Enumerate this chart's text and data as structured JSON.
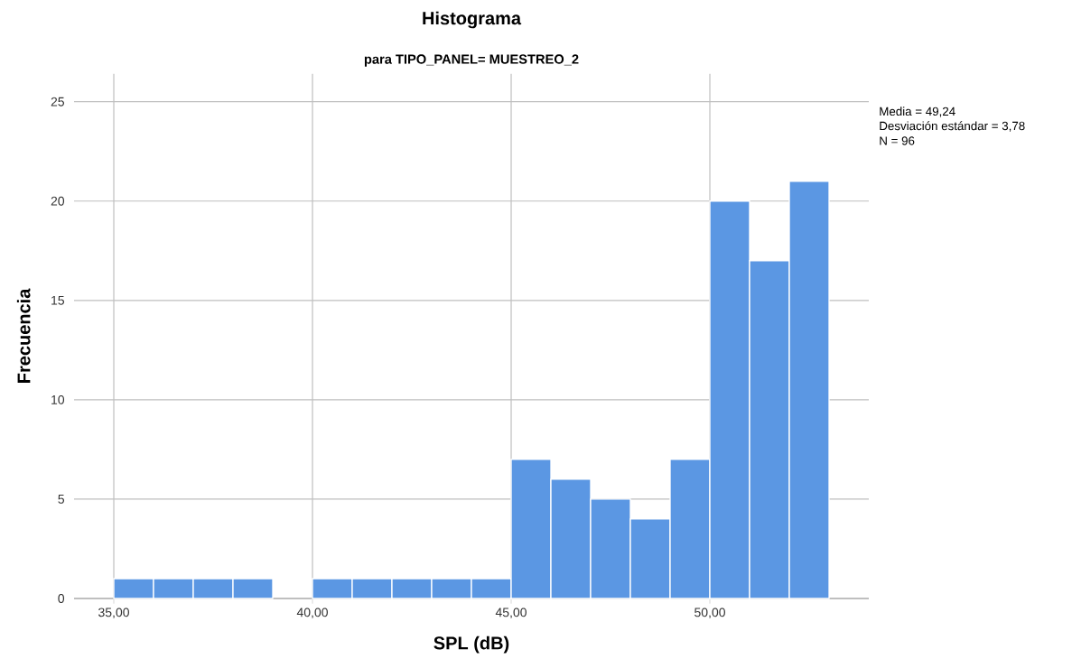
{
  "chart_data": {
    "type": "histogram",
    "title": "Histograma",
    "subtitle": "para TIPO_PANEL= MUESTREO_2",
    "xlabel": "SPL (dB)",
    "ylabel": "Frecuencia",
    "bins": [
      35,
      36,
      37,
      38,
      39,
      40,
      41,
      42,
      43,
      44,
      45,
      46,
      47,
      48,
      49,
      50,
      51,
      52,
      53
    ],
    "values": [
      1,
      1,
      1,
      1,
      0,
      1,
      1,
      1,
      1,
      1,
      7,
      6,
      5,
      4,
      7,
      20,
      17,
      21
    ],
    "color": "#5b97e3",
    "xlim": [
      34,
      54
    ],
    "ylim": [
      0,
      26.4
    ],
    "xticks": [
      {
        "value": 35,
        "label": "35,00"
      },
      {
        "value": 40,
        "label": "40,00"
      },
      {
        "value": 45,
        "label": "45,00"
      },
      {
        "value": 50,
        "label": "50,00"
      }
    ],
    "yticks": [
      0,
      5,
      10,
      15,
      20,
      25
    ],
    "grid": true,
    "annotations": [
      "Media = 49,24",
      "Desviación estándar = 3,78",
      "N = 96"
    ]
  }
}
